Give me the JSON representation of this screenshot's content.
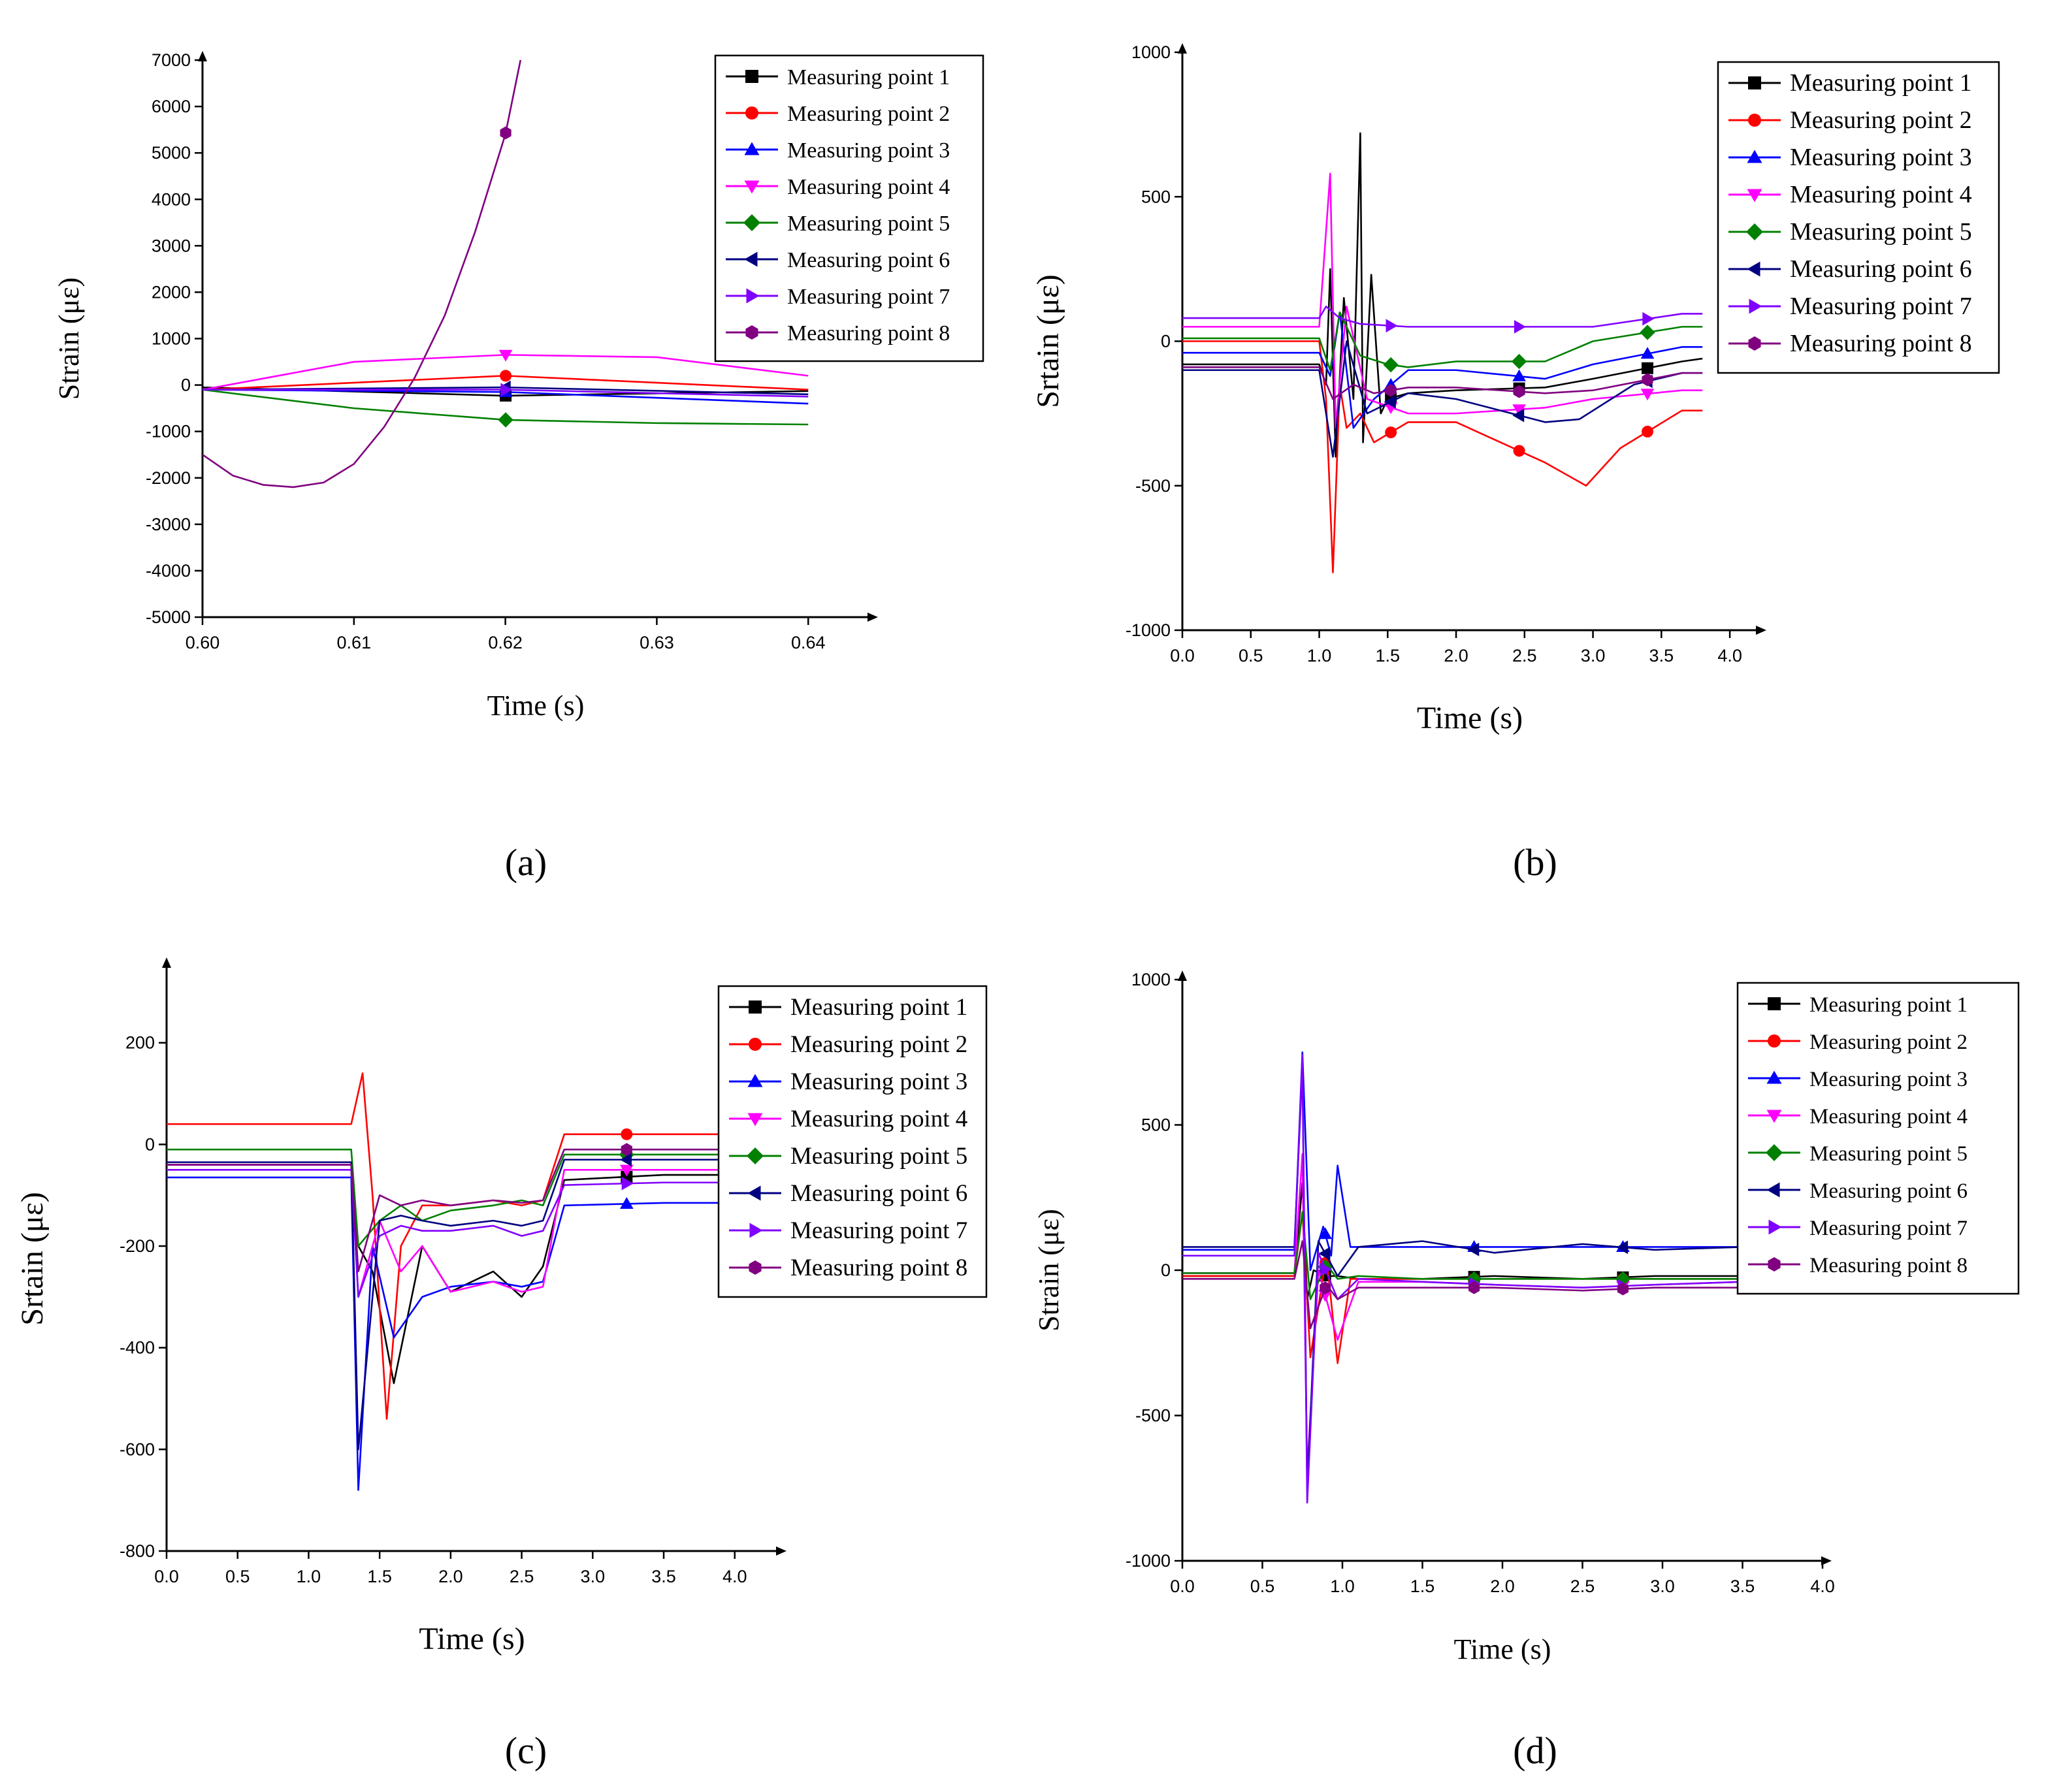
{
  "panels": [
    {
      "label": "(a)",
      "caption_letter": "a",
      "xlabel": "Time (s)",
      "ylabel": "Strain (με)",
      "xlim": [
        0.6,
        0.644
      ],
      "ylim": [
        -5000,
        7000
      ],
      "xticks": [
        "0.60",
        "0.61",
        "0.62",
        "0.63",
        "0.64"
      ],
      "yticks": [
        "-5000",
        "-4000",
        "-3000",
        "-2000",
        "-1000",
        "0",
        "1000",
        "2000",
        "3000",
        "4000",
        "5000",
        "6000",
        "7000"
      ]
    },
    {
      "label": "(b)",
      "caption_letter": "b",
      "xlabel": "Time (s)",
      "ylabel": "Srtain (με)",
      "xlim": [
        0,
        4.2
      ],
      "ylim": [
        -1000,
        1000
      ],
      "xticks": [
        "0.0",
        "0.5",
        "1.0",
        "1.5",
        "2.0",
        "2.5",
        "3.0",
        "3.5",
        "4.0"
      ],
      "yticks": [
        "-1000",
        "-500",
        "0",
        "500",
        "1000"
      ]
    },
    {
      "label": "(c)",
      "caption_letter": "c",
      "xlabel": "Time (s)",
      "ylabel": "Srtain (με)",
      "xlim": [
        0,
        4.3
      ],
      "ylim": [
        -800,
        350
      ],
      "xticks": [
        "0.0",
        "0.5",
        "1.0",
        "1.5",
        "2.0",
        "2.5",
        "3.0",
        "3.5",
        "4.0"
      ],
      "yticks": [
        "-800",
        "-600",
        "-400",
        "-200",
        "0",
        "200"
      ]
    },
    {
      "label": "(d)",
      "caption_letter": "d",
      "xlabel": "Time (s)",
      "ylabel": "Strain (με)",
      "xlim": [
        0,
        4.0
      ],
      "ylim": [
        -1000,
        1000
      ],
      "xticks": [
        "0.0",
        "0.5",
        "1.0",
        "1.5",
        "2.0",
        "2.5",
        "3.0",
        "3.5",
        "4.0"
      ],
      "yticks": [
        "-1000",
        "-500",
        "0",
        "500",
        "1000"
      ]
    }
  ],
  "legend_entries": [
    "Measuring point 1",
    "Measuring point 2",
    "Measuring point 3",
    "Measuring point 4",
    "Measuring point 5",
    "Measuring point 6",
    "Measuring point 7",
    "Measuring point 8"
  ],
  "series_colors": [
    "#000000",
    "#ff0000",
    "#0000ff",
    "#ff00ff",
    "#008000",
    "#000080",
    "#8000ff",
    "#800080"
  ],
  "series_markers": [
    "square",
    "circle",
    "triangle-up",
    "triangle-down",
    "diamond",
    "triangle-left",
    "triangle-right",
    "hexagon"
  ],
  "chart_data": [
    {
      "type": "line",
      "title": "(a)",
      "xlabel": "Time (s)",
      "ylabel": "Strain (με)",
      "xlim": [
        0.6,
        0.644
      ],
      "ylim": [
        -5000,
        7000
      ],
      "series": [
        {
          "name": "Measuring point 1",
          "x": [
            0.6,
            0.62,
            0.64
          ],
          "y": [
            -50,
            -230,
            -130
          ]
        },
        {
          "name": "Measuring point 2",
          "x": [
            0.6,
            0.62,
            0.64
          ],
          "y": [
            -100,
            200,
            -100
          ]
        },
        {
          "name": "Measuring point 3",
          "x": [
            0.6,
            0.62,
            0.64
          ],
          "y": [
            -100,
            -150,
            -400
          ]
        },
        {
          "name": "Measuring point 4",
          "x": [
            0.6,
            0.61,
            0.62,
            0.63,
            0.64
          ],
          "y": [
            -100,
            500,
            650,
            600,
            200
          ]
        },
        {
          "name": "Measuring point 5",
          "x": [
            0.6,
            0.61,
            0.62,
            0.63,
            0.64
          ],
          "y": [
            -100,
            -500,
            -750,
            -820,
            -850
          ]
        },
        {
          "name": "Measuring point 6",
          "x": [
            0.6,
            0.62,
            0.64
          ],
          "y": [
            -100,
            -50,
            -200
          ]
        },
        {
          "name": "Measuring point 7",
          "x": [
            0.6,
            0.62,
            0.64
          ],
          "y": [
            -100,
            -100,
            -250
          ]
        },
        {
          "name": "Measuring point 8",
          "x": [
            0.6,
            0.602,
            0.604,
            0.606,
            0.608,
            0.61,
            0.612,
            0.614,
            0.616,
            0.618,
            0.62,
            0.621
          ],
          "y": [
            -1500,
            -1950,
            -2150,
            -2200,
            -2100,
            -1700,
            -900,
            150,
            1500,
            3300,
            5400,
            7000
          ]
        }
      ]
    },
    {
      "type": "line",
      "title": "(b)",
      "xlabel": "Time (s)",
      "ylabel": "Srtain (με)",
      "xlim": [
        0,
        4.2
      ],
      "ylim": [
        -1000,
        1000
      ],
      "series": [
        {
          "name": "Measuring point 1",
          "x": [
            0,
            1.0,
            1.05,
            1.08,
            1.12,
            1.18,
            1.25,
            1.3,
            1.32,
            1.38,
            1.45,
            1.5,
            1.65,
            2.0,
            2.65,
            3.0,
            3.65,
            3.8
          ],
          "y": [
            -80,
            -80,
            -150,
            250,
            -400,
            150,
            -200,
            720,
            -350,
            230,
            -250,
            -200,
            -180,
            -170,
            -160,
            -130,
            -70,
            -60
          ]
        },
        {
          "name": "Measuring point 2",
          "x": [
            0,
            1.0,
            1.05,
            1.1,
            1.15,
            1.2,
            1.3,
            1.4,
            1.65,
            2.0,
            2.65,
            2.95,
            3.2,
            3.65,
            3.8
          ],
          "y": [
            0,
            0,
            -200,
            -800,
            -150,
            -300,
            -250,
            -350,
            -280,
            -280,
            -420,
            -500,
            -370,
            -240,
            -240
          ]
        },
        {
          "name": "Measuring point 3",
          "x": [
            0,
            1.0,
            1.08,
            1.15,
            1.25,
            1.4,
            1.65,
            2.0,
            2.65,
            3.0,
            3.65,
            3.8
          ],
          "y": [
            -40,
            -40,
            -120,
            100,
            -300,
            -200,
            -100,
            -100,
            -130,
            -80,
            -20,
            -20
          ]
        },
        {
          "name": "Measuring point 4",
          "x": [
            0,
            1.0,
            1.08,
            1.12,
            1.2,
            1.35,
            1.65,
            2.0,
            2.65,
            3.0,
            3.65,
            3.8
          ],
          "y": [
            50,
            50,
            580,
            -300,
            120,
            -200,
            -250,
            -250,
            -230,
            -200,
            -170,
            -170
          ]
        },
        {
          "name": "Measuring point 5",
          "x": [
            0,
            1.0,
            1.08,
            1.15,
            1.3,
            1.5,
            1.65,
            2.0,
            2.65,
            3.0,
            3.65,
            3.8
          ],
          "y": [
            10,
            10,
            -100,
            100,
            -50,
            -80,
            -90,
            -70,
            -70,
            0,
            50,
            50
          ]
        },
        {
          "name": "Measuring point 6",
          "x": [
            0,
            1.0,
            1.1,
            1.2,
            1.35,
            1.65,
            2.0,
            2.65,
            2.9,
            3.3,
            3.65,
            3.8
          ],
          "y": [
            -100,
            -100,
            -400,
            0,
            -250,
            -180,
            -200,
            -280,
            -270,
            -150,
            -110,
            -110
          ]
        },
        {
          "name": "Measuring point 7",
          "x": [
            0,
            1.0,
            1.05,
            1.15,
            1.3,
            1.65,
            2.65,
            3.0,
            3.65,
            3.8
          ],
          "y": [
            80,
            80,
            120,
            80,
            60,
            50,
            50,
            50,
            95,
            95
          ]
        },
        {
          "name": "Measuring point 8",
          "x": [
            0,
            1.0,
            1.1,
            1.25,
            1.4,
            1.65,
            2.0,
            2.65,
            3.0,
            3.65,
            3.8
          ],
          "y": [
            -90,
            -90,
            -200,
            -150,
            -180,
            -160,
            -160,
            -180,
            -170,
            -110,
            -110
          ]
        }
      ]
    },
    {
      "type": "line",
      "title": "(c)",
      "xlabel": "Time (s)",
      "ylabel": "Srtain (με)",
      "xlim": [
        0,
        4.3
      ],
      "ylim": [
        -800,
        350
      ],
      "series": [
        {
          "name": "Measuring point 1",
          "x": [
            0,
            1.3,
            1.35,
            1.45,
            1.6,
            1.8,
            2.0,
            2.3,
            2.5,
            2.65,
            2.8,
            3.5,
            4.0
          ],
          "y": [
            -40,
            -40,
            -200,
            -250,
            -470,
            -200,
            -290,
            -250,
            -300,
            -240,
            -70,
            -60,
            -60
          ]
        },
        {
          "name": "Measuring point 2",
          "x": [
            0,
            1.3,
            1.38,
            1.45,
            1.55,
            1.65,
            1.8,
            2.0,
            2.3,
            2.5,
            2.65,
            2.8,
            3.5,
            4.0
          ],
          "y": [
            40,
            40,
            140,
            -100,
            -540,
            -200,
            -120,
            -120,
            -110,
            -120,
            -110,
            20,
            20,
            20
          ]
        },
        {
          "name": "Measuring point 3",
          "x": [
            0,
            1.3,
            1.35,
            1.45,
            1.6,
            1.8,
            2.0,
            2.3,
            2.5,
            2.65,
            2.8,
            3.5,
            4.0
          ],
          "y": [
            -65,
            -65,
            -680,
            -200,
            -380,
            -300,
            -280,
            -270,
            -280,
            -270,
            -120,
            -115,
            -115
          ]
        },
        {
          "name": "Measuring point 4",
          "x": [
            0,
            1.3,
            1.35,
            1.5,
            1.65,
            1.8,
            2.0,
            2.3,
            2.5,
            2.65,
            2.8,
            3.5,
            4.0
          ],
          "y": [
            -40,
            -40,
            -300,
            -150,
            -250,
            -200,
            -290,
            -270,
            -290,
            -280,
            -50,
            -50,
            -50
          ]
        },
        {
          "name": "Measuring point 5",
          "x": [
            0,
            1.3,
            1.35,
            1.5,
            1.65,
            1.8,
            2.0,
            2.3,
            2.5,
            2.65,
            2.8,
            3.5,
            4.0
          ],
          "y": [
            -10,
            -10,
            -200,
            -150,
            -120,
            -150,
            -130,
            -120,
            -110,
            -120,
            -20,
            -20,
            -20
          ]
        },
        {
          "name": "Measuring point 6",
          "x": [
            0,
            1.3,
            1.35,
            1.5,
            1.65,
            1.8,
            2.0,
            2.3,
            2.5,
            2.65,
            2.8,
            3.5,
            4.0
          ],
          "y": [
            -35,
            -35,
            -600,
            -150,
            -140,
            -150,
            -160,
            -150,
            -160,
            -150,
            -30,
            -30,
            -30
          ]
        },
        {
          "name": "Measuring point 7",
          "x": [
            0,
            1.3,
            1.35,
            1.5,
            1.65,
            1.8,
            2.0,
            2.3,
            2.5,
            2.65,
            2.8,
            3.5,
            4.0
          ],
          "y": [
            -50,
            -50,
            -300,
            -180,
            -160,
            -170,
            -170,
            -160,
            -180,
            -170,
            -80,
            -75,
            -75
          ]
        },
        {
          "name": "Measuring point 8",
          "x": [
            0,
            1.3,
            1.35,
            1.5,
            1.65,
            1.8,
            2.0,
            2.3,
            2.5,
            2.65,
            2.8,
            3.5,
            4.0
          ],
          "y": [
            -40,
            -40,
            -250,
            -100,
            -120,
            -110,
            -120,
            -110,
            -115,
            -110,
            -10,
            -10,
            -10
          ]
        }
      ]
    },
    {
      "type": "line",
      "title": "(d)",
      "xlabel": "Time (s)",
      "ylabel": "Strain (με)",
      "xlim": [
        0,
        4.0
      ],
      "ylim": [
        -1000,
        1000
      ],
      "series": [
        {
          "name": "Measuring point 1",
          "x": [
            0,
            0.7,
            0.75,
            0.78,
            0.82,
            0.9,
            0.97,
            1.1,
            1.5,
            1.95,
            2.5,
            2.95,
            3.5,
            4.0
          ],
          "y": [
            -20,
            -20,
            300,
            -100,
            0,
            -20,
            -20,
            -30,
            -30,
            -20,
            -30,
            -20,
            -20,
            -20
          ]
        },
        {
          "name": "Measuring point 2",
          "x": [
            0,
            0.7,
            0.75,
            0.8,
            0.9,
            0.97,
            1.05,
            1.5,
            1.95,
            2.5,
            2.95,
            3.5,
            4.0
          ],
          "y": [
            -20,
            -20,
            200,
            -300,
            50,
            -320,
            -30,
            -30,
            -30,
            -30,
            -30,
            -30,
            -30
          ]
        },
        {
          "name": "Measuring point 3",
          "x": [
            0,
            0.7,
            0.75,
            0.8,
            0.88,
            0.93,
            0.97,
            1.05,
            1.5,
            1.95,
            2.5,
            2.95,
            3.5,
            4.0
          ],
          "y": [
            70,
            70,
            750,
            0,
            150,
            50,
            360,
            80,
            80,
            80,
            80,
            80,
            80,
            80
          ]
        },
        {
          "name": "Measuring point 4",
          "x": [
            0,
            0.7,
            0.75,
            0.78,
            0.85,
            0.97,
            1.1,
            1.5,
            1.95,
            2.5,
            2.95,
            3.5,
            4.0
          ],
          "y": [
            -10,
            -10,
            400,
            -700,
            0,
            -240,
            -40,
            -40,
            -50,
            -60,
            -50,
            -40,
            -40
          ]
        },
        {
          "name": "Measuring point 5",
          "x": [
            0,
            0.7,
            0.75,
            0.8,
            0.9,
            0.97,
            1.1,
            1.5,
            1.95,
            2.5,
            2.95,
            3.5,
            4.0
          ],
          "y": [
            -10,
            -10,
            200,
            -100,
            20,
            -30,
            -20,
            -30,
            -30,
            -30,
            -30,
            -30,
            -30
          ]
        },
        {
          "name": "Measuring point 6",
          "x": [
            0,
            0.7,
            0.75,
            0.78,
            0.85,
            0.97,
            1.1,
            1.5,
            1.95,
            2.5,
            2.95,
            3.5,
            4.0
          ],
          "y": [
            80,
            80,
            700,
            -750,
            100,
            -20,
            80,
            100,
            60,
            90,
            70,
            80,
            80
          ]
        },
        {
          "name": "Measuring point 7",
          "x": [
            0,
            0.7,
            0.75,
            0.78,
            0.85,
            0.97,
            1.1,
            1.5,
            1.95,
            2.5,
            2.95,
            3.5,
            4.0
          ],
          "y": [
            50,
            50,
            740,
            -800,
            60,
            -100,
            -30,
            -40,
            -50,
            -60,
            -50,
            -40,
            -40
          ]
        },
        {
          "name": "Measuring point 8",
          "x": [
            0,
            0.7,
            0.75,
            0.8,
            0.9,
            0.97,
            1.1,
            1.5,
            1.95,
            2.5,
            2.95,
            3.5,
            4.0
          ],
          "y": [
            -30,
            -30,
            100,
            -200,
            -50,
            -100,
            -60,
            -60,
            -60,
            -70,
            -60,
            -60,
            -60
          ]
        }
      ]
    }
  ]
}
